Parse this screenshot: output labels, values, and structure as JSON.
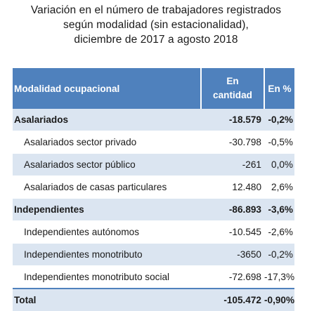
{
  "title": {
    "line1": "Variación en el número de trabajadores registrados",
    "line2": "según modalidad (sin estacionalidad),",
    "line3": "diciembre de 2017 a agosto 2018"
  },
  "table": {
    "headers": {
      "col1": "Modalidad ocupacional",
      "col2_line1": "En",
      "col2_line2": "cantidad",
      "col3": "En %"
    },
    "rows": [
      {
        "label": "Asalariados",
        "cantidad": "-18.579",
        "pct": "-0,2%"
      },
      {
        "label": "Asalariados sector privado",
        "cantidad": "-30.798",
        "pct": "-0,5%"
      },
      {
        "label": "Asalariados sector público",
        "cantidad": "-261",
        "pct": "0,0%"
      },
      {
        "label": "Asalariados de casas particulares",
        "cantidad": "12.480",
        "pct": "2,6%"
      },
      {
        "label": "Independientes",
        "cantidad": "-86.893",
        "pct": "-3,6%"
      },
      {
        "label": "Independientes autónomos",
        "cantidad": "-10.545",
        "pct": "-2,6%"
      },
      {
        "label": "Independientes monotributo",
        "cantidad": "-3650",
        "pct": "-0,2%"
      },
      {
        "label": "Independientes monotributo social",
        "cantidad": "-72.698",
        "pct": "-17,3%"
      },
      {
        "label": "Total",
        "cantidad": "-105.472",
        "pct": "-0,90%"
      }
    ]
  },
  "colors": {
    "header_bg": "#4f81bd",
    "row_shade": "#dbe5f1",
    "header_text": "#ffffff"
  }
}
